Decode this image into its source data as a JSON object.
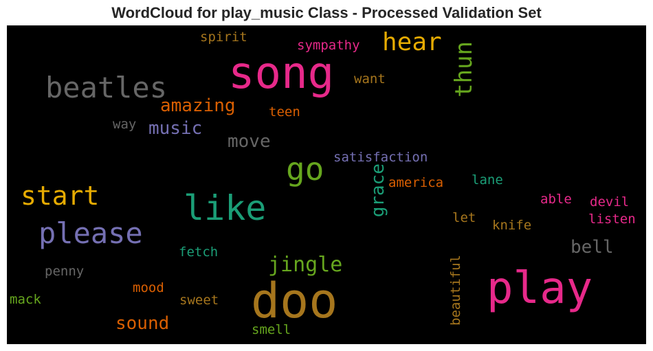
{
  "title": "WordCloud for play_music Class - Processed Validation Set",
  "chart_data": {
    "type": "wordcloud",
    "title": "WordCloud for play_music Class - Processed Validation Set",
    "background": "#000000",
    "colormap": "Dark2",
    "words": [
      {
        "text": "song",
        "color": "#e7298a"
      },
      {
        "text": "play",
        "color": "#e7298a"
      },
      {
        "text": "doo",
        "color": "#a6761d"
      },
      {
        "text": "like",
        "color": "#1b9e77"
      },
      {
        "text": "beatles",
        "color": "#666666"
      },
      {
        "text": "please",
        "color": "#7570b3"
      },
      {
        "text": "go",
        "color": "#66a61e"
      },
      {
        "text": "start",
        "color": "#e6ab02"
      },
      {
        "text": "hear",
        "color": "#e6ab02"
      },
      {
        "text": "thun",
        "color": "#66a61e"
      },
      {
        "text": "jingle",
        "color": "#66a61e"
      },
      {
        "text": "amazing",
        "color": "#d95f02"
      },
      {
        "text": "music",
        "color": "#7570b3"
      },
      {
        "text": "sound",
        "color": "#d95f02"
      },
      {
        "text": "bell",
        "color": "#666666"
      },
      {
        "text": "move",
        "color": "#666666"
      },
      {
        "text": "grace",
        "color": "#1b9e77"
      },
      {
        "text": "satisfaction",
        "color": "#7570b3"
      },
      {
        "text": "sympathy",
        "color": "#e7298a"
      },
      {
        "text": "spirit",
        "color": "#a6761d"
      },
      {
        "text": "want",
        "color": "#a6761d"
      },
      {
        "text": "teen",
        "color": "#d95f02"
      },
      {
        "text": "way",
        "color": "#666666"
      },
      {
        "text": "america",
        "color": "#d95f02"
      },
      {
        "text": "lane",
        "color": "#1b9e77"
      },
      {
        "text": "able",
        "color": "#e7298a"
      },
      {
        "text": "devil",
        "color": "#e7298a"
      },
      {
        "text": "listen",
        "color": "#e7298a"
      },
      {
        "text": "let",
        "color": "#a6761d"
      },
      {
        "text": "knife",
        "color": "#a6761d"
      },
      {
        "text": "fetch",
        "color": "#1b9e77"
      },
      {
        "text": "penny",
        "color": "#666666"
      },
      {
        "text": "mood",
        "color": "#d95f02"
      },
      {
        "text": "sweet",
        "color": "#a6761d"
      },
      {
        "text": "mack",
        "color": "#66a61e"
      },
      {
        "text": "smell",
        "color": "#66a61e"
      },
      {
        "text": "beautiful",
        "color": "#a6761d"
      }
    ]
  }
}
